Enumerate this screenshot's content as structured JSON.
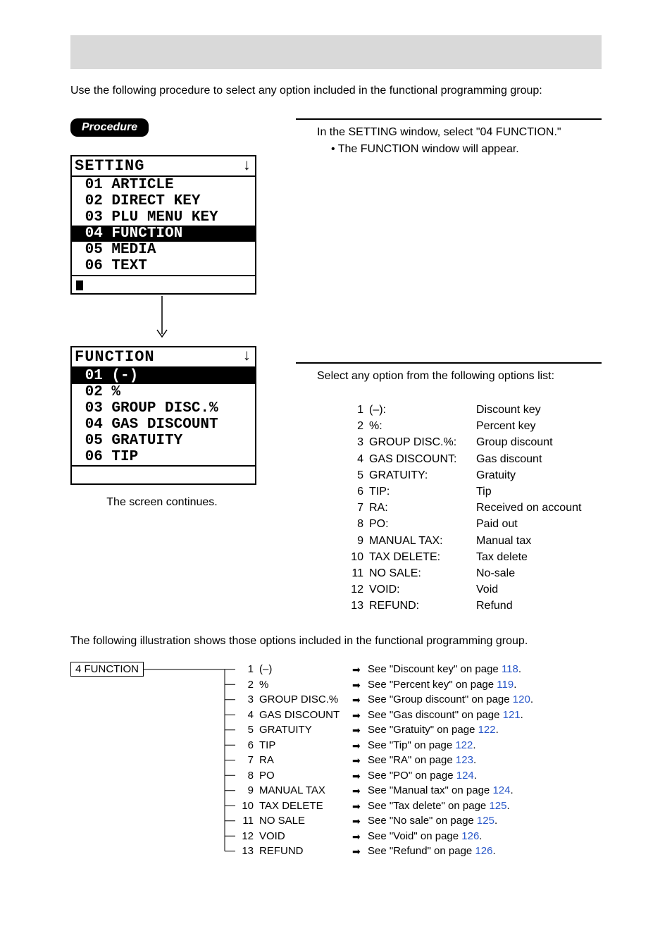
{
  "intro": "Use the following procedure to select any option included in the functional programming group:",
  "procedure_label": "Procedure",
  "step1": {
    "line1": "In the SETTING window, select \"04 FUNCTION.\"",
    "bullet": "• The FUNCTION window will appear."
  },
  "setting_screen": {
    "title": "SETTING",
    "items": [
      {
        "num": "01",
        "label": "ARTICLE",
        "selected": false
      },
      {
        "num": "02",
        "label": "DIRECT KEY",
        "selected": false
      },
      {
        "num": "03",
        "label": "PLU MENU KEY",
        "selected": false
      },
      {
        "num": "04",
        "label": "FUNCTION",
        "selected": true
      },
      {
        "num": "05",
        "label": "MEDIA",
        "selected": false
      },
      {
        "num": "06",
        "label": "TEXT",
        "selected": false
      }
    ]
  },
  "function_screen": {
    "title": "FUNCTION",
    "items": [
      {
        "num": "01",
        "label": "(-)",
        "selected": true
      },
      {
        "num": "02",
        "label": "%",
        "selected": false
      },
      {
        "num": "03",
        "label": "GROUP DISC.%",
        "selected": false
      },
      {
        "num": "04",
        "label": "GAS DISCOUNT",
        "selected": false
      },
      {
        "num": "05",
        "label": "GRATUITY",
        "selected": false
      },
      {
        "num": "06",
        "label": "TIP",
        "selected": false
      }
    ]
  },
  "screen_continues": "The screen continues.",
  "step2_intro": "Select any option from the following options list:",
  "options": [
    {
      "n": "1",
      "name": "(–):",
      "desc": "Discount key"
    },
    {
      "n": "2",
      "name": "%:",
      "desc": "Percent key"
    },
    {
      "n": "3",
      "name": "GROUP DISC.%:",
      "desc": "Group discount"
    },
    {
      "n": "4",
      "name": "GAS DISCOUNT:",
      "desc": "Gas discount"
    },
    {
      "n": "5",
      "name": "GRATUITY:",
      "desc": "Gratuity"
    },
    {
      "n": "6",
      "name": "TIP:",
      "desc": "Tip"
    },
    {
      "n": "7",
      "name": "RA:",
      "desc": "Received on account"
    },
    {
      "n": "8",
      "name": "PO:",
      "desc": "Paid out"
    },
    {
      "n": "9",
      "name": "MANUAL TAX:",
      "desc": "Manual tax"
    },
    {
      "n": "10",
      "name": "TAX DELETE:",
      "desc": "Tax delete"
    },
    {
      "n": "11",
      "name": "NO SALE:",
      "desc": "No-sale"
    },
    {
      "n": "12",
      "name": "VOID:",
      "desc": "Void"
    },
    {
      "n": "13",
      "name": "REFUND:",
      "desc": "Refund"
    }
  ],
  "illustration_intro": "The following illustration shows those options included in the functional programming group.",
  "tree_root": "4 FUNCTION",
  "tree": [
    {
      "n": "1",
      "name": "(–)",
      "ref_pre": "See \"Discount key\" on page ",
      "page": "118",
      "ref_post": "."
    },
    {
      "n": "2",
      "name": "%",
      "ref_pre": "See \"Percent key\" on page ",
      "page": "119",
      "ref_post": "."
    },
    {
      "n": "3",
      "name": "GROUP DISC.%",
      "ref_pre": "See \"Group discount\" on page ",
      "page": "120",
      "ref_post": "."
    },
    {
      "n": "4",
      "name": "GAS DISCOUNT",
      "ref_pre": "See \"Gas discount\" on page ",
      "page": "121",
      "ref_post": "."
    },
    {
      "n": "5",
      "name": "GRATUITY",
      "ref_pre": "See \"Gratuity\" on page ",
      "page": "122",
      "ref_post": "."
    },
    {
      "n": "6",
      "name": "TIP",
      "ref_pre": "See \"Tip\" on page ",
      "page": "122",
      "ref_post": "."
    },
    {
      "n": "7",
      "name": "RA",
      "ref_pre": "See \"RA\" on page ",
      "page": "123",
      "ref_post": "."
    },
    {
      "n": "8",
      "name": "PO",
      "ref_pre": "See \"PO\" on page ",
      "page": "124",
      "ref_post": "."
    },
    {
      "n": "9",
      "name": "MANUAL TAX",
      "ref_pre": "See \"Manual tax\" on page ",
      "page": "124",
      "ref_post": "."
    },
    {
      "n": "10",
      "name": "TAX DELETE",
      "ref_pre": "See \"Tax delete\" on page ",
      "page": "125",
      "ref_post": "."
    },
    {
      "n": "11",
      "name": "NO SALE",
      "ref_pre": "See \"No sale\" on page ",
      "page": "125",
      "ref_post": "."
    },
    {
      "n": "12",
      "name": "VOID",
      "ref_pre": "See \"Void\" on page ",
      "page": "126",
      "ref_post": "."
    },
    {
      "n": "13",
      "name": "REFUND",
      "ref_pre": "See \"Refund\" on page ",
      "page": "126",
      "ref_post": "."
    }
  ],
  "arrow_glyph": "➡",
  "colors": {
    "link": "#2a58c9",
    "grey_bar": "#d9d9d9"
  }
}
